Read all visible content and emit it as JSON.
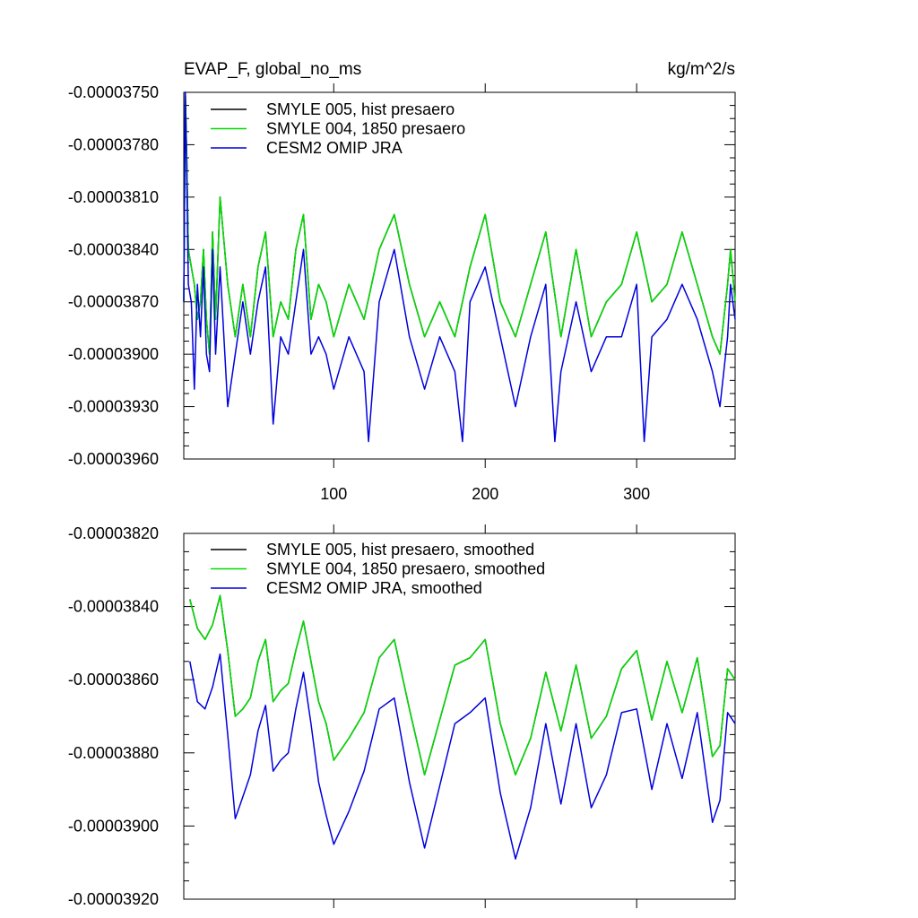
{
  "chart_data": [
    {
      "type": "line",
      "title": "EVAP_F, global_no_ms",
      "units": "kg/m^2/s",
      "xlim": [
        1,
        365
      ],
      "ylim": [
        -3.96e-05,
        -3.75e-05
      ],
      "x_tick_values": [
        100,
        200,
        300
      ],
      "x_tick_labels": [
        "100",
        "200",
        "300"
      ],
      "y_tick_values": [
        -3.75e-05,
        -3.78e-05,
        -3.81e-05,
        -3.84e-05,
        -3.87e-05,
        -3.9e-05,
        -3.93e-05,
        -3.96e-05
      ],
      "y_tick_labels": [
        "-0.00003750",
        "-0.00003780",
        "-0.00003810",
        "-0.00003840",
        "-0.00003870",
        "-0.00003900",
        "-0.00003930",
        "-0.00003960"
      ],
      "legend_position": "top-left",
      "series": [
        {
          "name": "SMYLE 005, hist presaero",
          "color": "#000000",
          "x": [
            1,
            2,
            3,
            4,
            6,
            8,
            10,
            12,
            14,
            16,
            18,
            20,
            22,
            25,
            30,
            35,
            40,
            45,
            50,
            55,
            60,
            65,
            70,
            75,
            80,
            85,
            90,
            95,
            100,
            110,
            120,
            130,
            140,
            150,
            160,
            170,
            180,
            190,
            200,
            210,
            220,
            230,
            240,
            250,
            260,
            270,
            280,
            290,
            300,
            310,
            320,
            330,
            340,
            350,
            355,
            360,
            362,
            365
          ],
          "values": [
            -3.87e-05,
            -3.75e-05,
            -3.79e-05,
            -3.84e-05,
            -3.85e-05,
            -3.86e-05,
            -3.88e-05,
            -3.87e-05,
            -3.84e-05,
            -3.88e-05,
            -3.9e-05,
            -3.83e-05,
            -3.88e-05,
            -3.81e-05,
            -3.86e-05,
            -3.89e-05,
            -3.86e-05,
            -3.89e-05,
            -3.85e-05,
            -3.83e-05,
            -3.89e-05,
            -3.87e-05,
            -3.88e-05,
            -3.84e-05,
            -3.82e-05,
            -3.88e-05,
            -3.86e-05,
            -3.87e-05,
            -3.89e-05,
            -3.86e-05,
            -3.88e-05,
            -3.84e-05,
            -3.82e-05,
            -3.86e-05,
            -3.89e-05,
            -3.87e-05,
            -3.89e-05,
            -3.85e-05,
            -3.82e-05,
            -3.87e-05,
            -3.89e-05,
            -3.86e-05,
            -3.83e-05,
            -3.89e-05,
            -3.84e-05,
            -3.89e-05,
            -3.87e-05,
            -3.86e-05,
            -3.83e-05,
            -3.87e-05,
            -3.86e-05,
            -3.83e-05,
            -3.86e-05,
            -3.89e-05,
            -3.9e-05,
            -3.86e-05,
            -3.84e-05,
            -3.87e-05
          ]
        },
        {
          "name": "SMYLE 004, 1850 presaero",
          "color": "#00dd00",
          "x": [
            1,
            2,
            3,
            4,
            6,
            8,
            10,
            12,
            14,
            16,
            18,
            20,
            22,
            25,
            30,
            35,
            40,
            45,
            50,
            55,
            60,
            65,
            70,
            75,
            80,
            85,
            90,
            95,
            100,
            110,
            120,
            130,
            140,
            150,
            160,
            170,
            180,
            190,
            200,
            210,
            220,
            230,
            240,
            250,
            260,
            270,
            280,
            290,
            300,
            310,
            320,
            330,
            340,
            350,
            355,
            360,
            362,
            365
          ],
          "values": [
            -3.87e-05,
            -3.75e-05,
            -3.79e-05,
            -3.84e-05,
            -3.85e-05,
            -3.86e-05,
            -3.88e-05,
            -3.87e-05,
            -3.84e-05,
            -3.88e-05,
            -3.9e-05,
            -3.83e-05,
            -3.88e-05,
            -3.81e-05,
            -3.86e-05,
            -3.89e-05,
            -3.86e-05,
            -3.89e-05,
            -3.85e-05,
            -3.83e-05,
            -3.89e-05,
            -3.87e-05,
            -3.88e-05,
            -3.84e-05,
            -3.82e-05,
            -3.88e-05,
            -3.86e-05,
            -3.87e-05,
            -3.89e-05,
            -3.86e-05,
            -3.88e-05,
            -3.84e-05,
            -3.82e-05,
            -3.86e-05,
            -3.89e-05,
            -3.87e-05,
            -3.89e-05,
            -3.85e-05,
            -3.82e-05,
            -3.87e-05,
            -3.89e-05,
            -3.86e-05,
            -3.83e-05,
            -3.89e-05,
            -3.84e-05,
            -3.89e-05,
            -3.87e-05,
            -3.86e-05,
            -3.83e-05,
            -3.87e-05,
            -3.86e-05,
            -3.83e-05,
            -3.86e-05,
            -3.89e-05,
            -3.9e-05,
            -3.86e-05,
            -3.84e-05,
            -3.87e-05
          ]
        },
        {
          "name": "CESM2 OMIP JRA",
          "color": "#0000dd",
          "x": [
            1,
            2,
            3,
            4,
            6,
            8,
            10,
            12,
            14,
            16,
            18,
            20,
            22,
            25,
            30,
            35,
            40,
            45,
            50,
            55,
            60,
            65,
            70,
            75,
            80,
            85,
            90,
            95,
            100,
            110,
            120,
            123,
            130,
            140,
            150,
            160,
            170,
            180,
            185,
            190,
            200,
            210,
            220,
            230,
            240,
            246,
            250,
            260,
            270,
            280,
            290,
            300,
            305,
            310,
            320,
            330,
            340,
            350,
            355,
            360,
            362,
            365
          ],
          "values": [
            -3.87e-05,
            -3.75e-05,
            -3.8e-05,
            -3.86e-05,
            -3.87e-05,
            -3.92e-05,
            -3.86e-05,
            -3.89e-05,
            -3.85e-05,
            -3.9e-05,
            -3.91e-05,
            -3.84e-05,
            -3.9e-05,
            -3.85e-05,
            -3.93e-05,
            -3.9e-05,
            -3.87e-05,
            -3.9e-05,
            -3.87e-05,
            -3.85e-05,
            -3.94e-05,
            -3.89e-05,
            -3.9e-05,
            -3.87e-05,
            -3.84e-05,
            -3.9e-05,
            -3.89e-05,
            -3.9e-05,
            -3.92e-05,
            -3.89e-05,
            -3.91e-05,
            -3.95e-05,
            -3.87e-05,
            -3.84e-05,
            -3.89e-05,
            -3.92e-05,
            -3.89e-05,
            -3.91e-05,
            -3.95e-05,
            -3.87e-05,
            -3.85e-05,
            -3.89e-05,
            -3.93e-05,
            -3.89e-05,
            -3.86e-05,
            -3.95e-05,
            -3.91e-05,
            -3.87e-05,
            -3.91e-05,
            -3.89e-05,
            -3.89e-05,
            -3.86e-05,
            -3.95e-05,
            -3.89e-05,
            -3.88e-05,
            -3.86e-05,
            -3.88e-05,
            -3.91e-05,
            -3.93e-05,
            -3.89e-05,
            -3.86e-05,
            -3.88e-05
          ]
        }
      ]
    },
    {
      "type": "line",
      "title": "",
      "xlim": [
        1,
        365
      ],
      "ylim": [
        -3.92e-05,
        -3.82e-05
      ],
      "x_tick_values": [
        100,
        200,
        300
      ],
      "x_tick_labels": [
        "",
        "",
        ""
      ],
      "y_tick_values": [
        -3.82e-05,
        -3.84e-05,
        -3.86e-05,
        -3.88e-05,
        -3.9e-05,
        -3.92e-05
      ],
      "y_tick_labels": [
        "-0.00003820",
        "-0.00003840",
        "-0.00003860",
        "-0.00003880",
        "-0.00003900",
        "-0.00003920"
      ],
      "legend_position": "top-left",
      "series": [
        {
          "name": "SMYLE 005, hist presaero, smoothed",
          "color": "#000000",
          "x": [
            5,
            10,
            15,
            20,
            25,
            30,
            35,
            40,
            45,
            50,
            55,
            60,
            65,
            70,
            75,
            80,
            85,
            90,
            95,
            100,
            110,
            120,
            130,
            140,
            150,
            160,
            170,
            180,
            190,
            200,
            210,
            220,
            230,
            240,
            250,
            260,
            270,
            280,
            290,
            300,
            310,
            320,
            330,
            340,
            350,
            355,
            360,
            365
          ],
          "values": [
            -3.838e-05,
            -3.846e-05,
            -3.849e-05,
            -3.845e-05,
            -3.837e-05,
            -3.852e-05,
            -3.87e-05,
            -3.868e-05,
            -3.865e-05,
            -3.855e-05,
            -3.849e-05,
            -3.866e-05,
            -3.863e-05,
            -3.861e-05,
            -3.852e-05,
            -3.844e-05,
            -3.855e-05,
            -3.866e-05,
            -3.872e-05,
            -3.882e-05,
            -3.876e-05,
            -3.869e-05,
            -3.854e-05,
            -3.849e-05,
            -3.868e-05,
            -3.886e-05,
            -3.871e-05,
            -3.856e-05,
            -3.854e-05,
            -3.849e-05,
            -3.872e-05,
            -3.886e-05,
            -3.876e-05,
            -3.858e-05,
            -3.874e-05,
            -3.856e-05,
            -3.876e-05,
            -3.87e-05,
            -3.857e-05,
            -3.852e-05,
            -3.871e-05,
            -3.855e-05,
            -3.869e-05,
            -3.854e-05,
            -3.881e-05,
            -3.878e-05,
            -3.857e-05,
            -3.86e-05
          ]
        },
        {
          "name": "SMYLE 004, 1850 presaero, smoothed",
          "color": "#00dd00",
          "x": [
            5,
            10,
            15,
            20,
            25,
            30,
            35,
            40,
            45,
            50,
            55,
            60,
            65,
            70,
            75,
            80,
            85,
            90,
            95,
            100,
            110,
            120,
            130,
            140,
            150,
            160,
            170,
            180,
            190,
            200,
            210,
            220,
            230,
            240,
            250,
            260,
            270,
            280,
            290,
            300,
            310,
            320,
            330,
            340,
            350,
            355,
            360,
            365
          ],
          "values": [
            -3.838e-05,
            -3.846e-05,
            -3.849e-05,
            -3.845e-05,
            -3.837e-05,
            -3.852e-05,
            -3.87e-05,
            -3.868e-05,
            -3.865e-05,
            -3.855e-05,
            -3.849e-05,
            -3.866e-05,
            -3.863e-05,
            -3.861e-05,
            -3.852e-05,
            -3.844e-05,
            -3.855e-05,
            -3.866e-05,
            -3.872e-05,
            -3.882e-05,
            -3.876e-05,
            -3.869e-05,
            -3.854e-05,
            -3.849e-05,
            -3.868e-05,
            -3.886e-05,
            -3.871e-05,
            -3.856e-05,
            -3.854e-05,
            -3.849e-05,
            -3.872e-05,
            -3.886e-05,
            -3.876e-05,
            -3.858e-05,
            -3.874e-05,
            -3.856e-05,
            -3.876e-05,
            -3.87e-05,
            -3.857e-05,
            -3.852e-05,
            -3.871e-05,
            -3.855e-05,
            -3.869e-05,
            -3.854e-05,
            -3.881e-05,
            -3.878e-05,
            -3.857e-05,
            -3.86e-05
          ]
        },
        {
          "name": "CESM2 OMIP JRA, smoothed",
          "color": "#0000dd",
          "x": [
            5,
            10,
            15,
            20,
            25,
            30,
            35,
            40,
            45,
            50,
            55,
            60,
            65,
            70,
            75,
            80,
            85,
            90,
            95,
            100,
            110,
            120,
            130,
            140,
            150,
            160,
            170,
            180,
            190,
            200,
            210,
            220,
            230,
            240,
            250,
            260,
            270,
            280,
            290,
            300,
            310,
            320,
            330,
            340,
            350,
            355,
            360,
            365
          ],
          "values": [
            -3.855e-05,
            -3.866e-05,
            -3.868e-05,
            -3.862e-05,
            -3.853e-05,
            -3.875e-05,
            -3.898e-05,
            -3.892e-05,
            -3.886e-05,
            -3.874e-05,
            -3.867e-05,
            -3.885e-05,
            -3.882e-05,
            -3.88e-05,
            -3.868e-05,
            -3.858e-05,
            -3.872e-05,
            -3.888e-05,
            -3.897e-05,
            -3.905e-05,
            -3.896e-05,
            -3.885e-05,
            -3.868e-05,
            -3.865e-05,
            -3.888e-05,
            -3.906e-05,
            -3.889e-05,
            -3.872e-05,
            -3.869e-05,
            -3.865e-05,
            -3.891e-05,
            -3.909e-05,
            -3.895e-05,
            -3.872e-05,
            -3.894e-05,
            -3.872e-05,
            -3.895e-05,
            -3.886e-05,
            -3.869e-05,
            -3.868e-05,
            -3.89e-05,
            -3.872e-05,
            -3.887e-05,
            -3.869e-05,
            -3.899e-05,
            -3.893e-05,
            -3.869e-05,
            -3.872e-05
          ]
        }
      ]
    }
  ]
}
